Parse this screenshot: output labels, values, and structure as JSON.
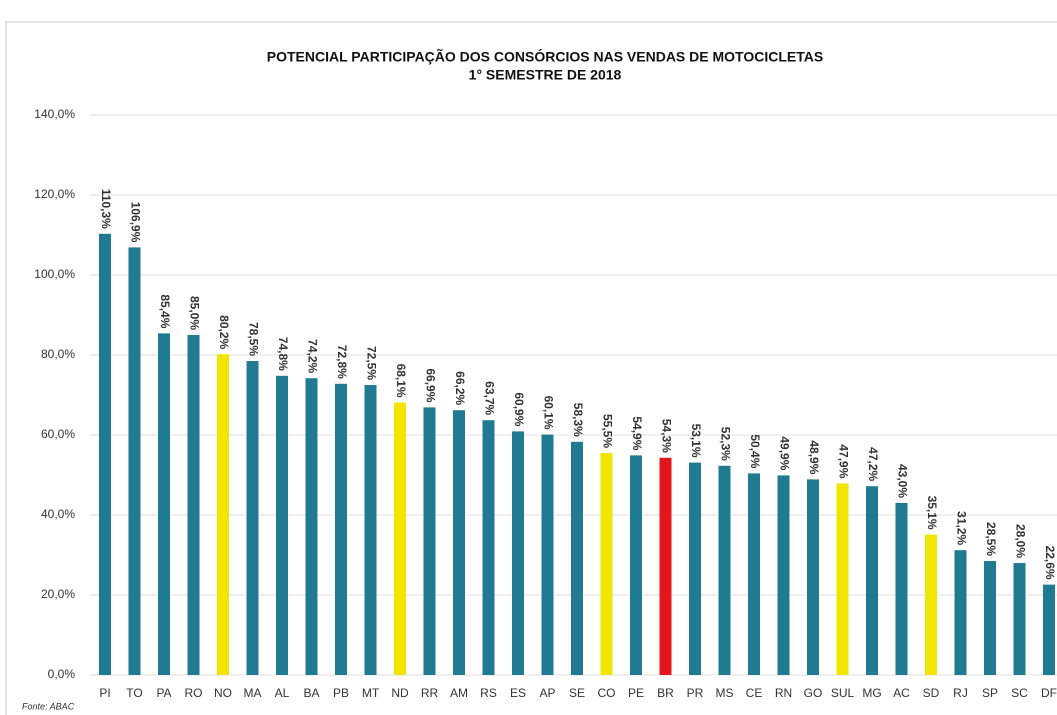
{
  "chart_data": {
    "type": "bar",
    "title": "POTENCIAL PARTICIPAÇÃO DOS CONSÓRCIOS NAS VENDAS DE MOTOCICLETAS",
    "subtitle": "1° SEMESTRE DE 2018",
    "source": "Fonte: ABAC",
    "categories": [
      "PI",
      "TO",
      "PA",
      "RO",
      "NO",
      "MA",
      "AL",
      "BA",
      "PB",
      "MT",
      "ND",
      "RR",
      "AM",
      "RS",
      "ES",
      "AP",
      "SE",
      "CO",
      "PE",
      "BR",
      "PR",
      "MS",
      "CE",
      "RN",
      "GO",
      "SUL",
      "MG",
      "AC",
      "SD",
      "RJ",
      "SP",
      "SC",
      "DF"
    ],
    "values": [
      110.3,
      106.9,
      85.4,
      85.0,
      80.2,
      78.5,
      74.8,
      74.2,
      72.8,
      72.5,
      68.1,
      66.9,
      66.2,
      63.7,
      60.9,
      60.1,
      58.3,
      55.5,
      54.9,
      54.3,
      53.1,
      52.3,
      50.4,
      49.9,
      48.9,
      47.9,
      47.2,
      43.0,
      35.1,
      31.2,
      28.5,
      28.0,
      22.6
    ],
    "value_labels": [
      "110,3%",
      "106,9%",
      "85,4%",
      "85,0%",
      "80,2%",
      "78,5%",
      "74,8%",
      "74,2%",
      "72,8%",
      "72,5%",
      "68,1%",
      "66,9%",
      "66,2%",
      "63,7%",
      "60,9%",
      "60,1%",
      "58,3%",
      "55,5%",
      "54,9%",
      "54,3%",
      "53,1%",
      "52,3%",
      "50,4%",
      "49,9%",
      "48,9%",
      "47,9%",
      "47,2%",
      "43,0%",
      "35,1%",
      "31,2%",
      "28,5%",
      "28,0%",
      "22,6%"
    ],
    "colors": [
      "#1f7a92",
      "#1f7a92",
      "#1f7a92",
      "#1f7a92",
      "#f2e600",
      "#1f7a92",
      "#1f7a92",
      "#1f7a92",
      "#1f7a92",
      "#1f7a92",
      "#f2e600",
      "#1f7a92",
      "#1f7a92",
      "#1f7a92",
      "#1f7a92",
      "#1f7a92",
      "#1f7a92",
      "#f2e600",
      "#1f7a92",
      "#e3161b",
      "#1f7a92",
      "#1f7a92",
      "#1f7a92",
      "#1f7a92",
      "#1f7a92",
      "#f2e600",
      "#1f7a92",
      "#1f7a92",
      "#f2e600",
      "#1f7a92",
      "#1f7a92",
      "#1f7a92",
      "#1f7a92"
    ],
    "ylim": [
      0,
      140
    ],
    "yticks": [
      {
        "value": 0,
        "label": "0,0%"
      },
      {
        "value": 20,
        "label": "20,0%"
      },
      {
        "value": 40,
        "label": "40,0%"
      },
      {
        "value": 60,
        "label": "60,0%"
      },
      {
        "value": 80,
        "label": "80,0%"
      },
      {
        "value": 100,
        "label": "100,0%"
      },
      {
        "value": 120,
        "label": "120,0%"
      },
      {
        "value": 140,
        "label": "140,0%"
      }
    ],
    "grid": true
  }
}
